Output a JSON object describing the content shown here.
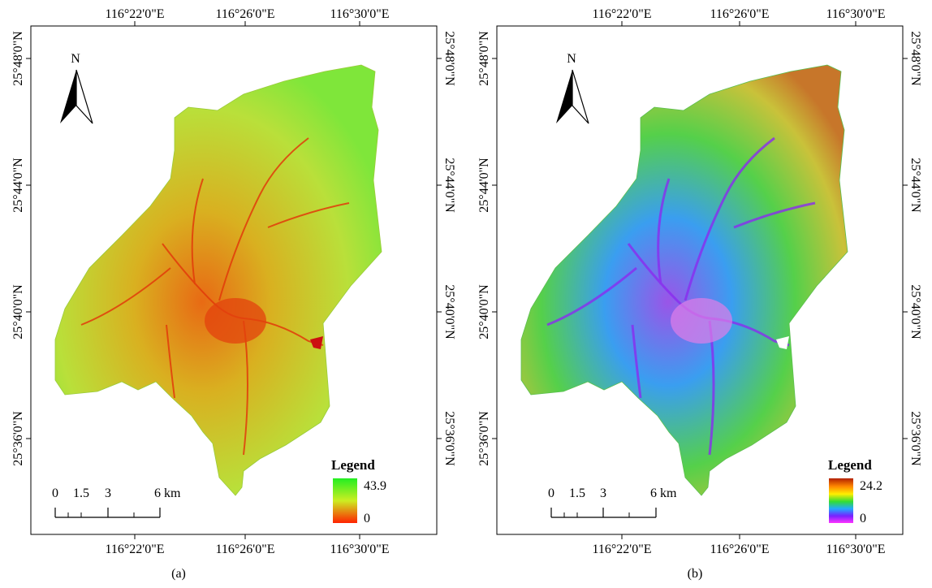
{
  "panels": [
    {
      "id": "a",
      "caption": "(a)",
      "top_ticks": [
        "116°22'0\"E",
        "116°26'0\"E",
        "116°30'0\"E"
      ],
      "bottom_ticks": [
        "116°22'0\"E",
        "116°26'0\"E",
        "116°30'0\"E"
      ],
      "left_ticks": [
        "25°48'0\"N",
        "25°44'0\"N",
        "25°40'0\"N",
        "25°36'0\"N"
      ],
      "right_ticks": [
        "25°48'0\"N",
        "25°44'0\"N",
        "25°40'0\"N",
        "25°36'0\"N"
      ],
      "north_label": "N",
      "scale_labels": [
        "0",
        "1.5",
        "3",
        "6 km"
      ],
      "legend": {
        "title": "Legend",
        "max": "43.9",
        "min": "0"
      },
      "colors": {
        "ramp_top": "#22ee22",
        "ramp_mid": "#ccee22",
        "ramp_bottom": "#ff2200"
      }
    },
    {
      "id": "b",
      "caption": "(b)",
      "top_ticks": [
        "116°22'0\"E",
        "116°26'0\"E",
        "116°30'0\"E"
      ],
      "bottom_ticks": [
        "116°22'0\"E",
        "116°26'0\"E",
        "116°30'0\"E"
      ],
      "left_ticks": [
        "25°48'0\"N",
        "25°44'0\"N",
        "25°40'0\"N",
        "25°36'0\"N"
      ],
      "right_ticks": [
        "25°48'0\"N",
        "25°44'0\"N",
        "25°40'0\"N",
        "25°36'0\"N"
      ],
      "north_label": "N",
      "scale_labels": [
        "0",
        "1.5",
        "3",
        "6 km"
      ],
      "legend": {
        "title": "Legend",
        "max": "24.2",
        "min": "0"
      },
      "colors": {
        "ramp": [
          "#b22000",
          "#ff8800",
          "#ffee00",
          "#33dd33",
          "#22aaff",
          "#7722ff",
          "#ff33ff"
        ]
      }
    }
  ]
}
